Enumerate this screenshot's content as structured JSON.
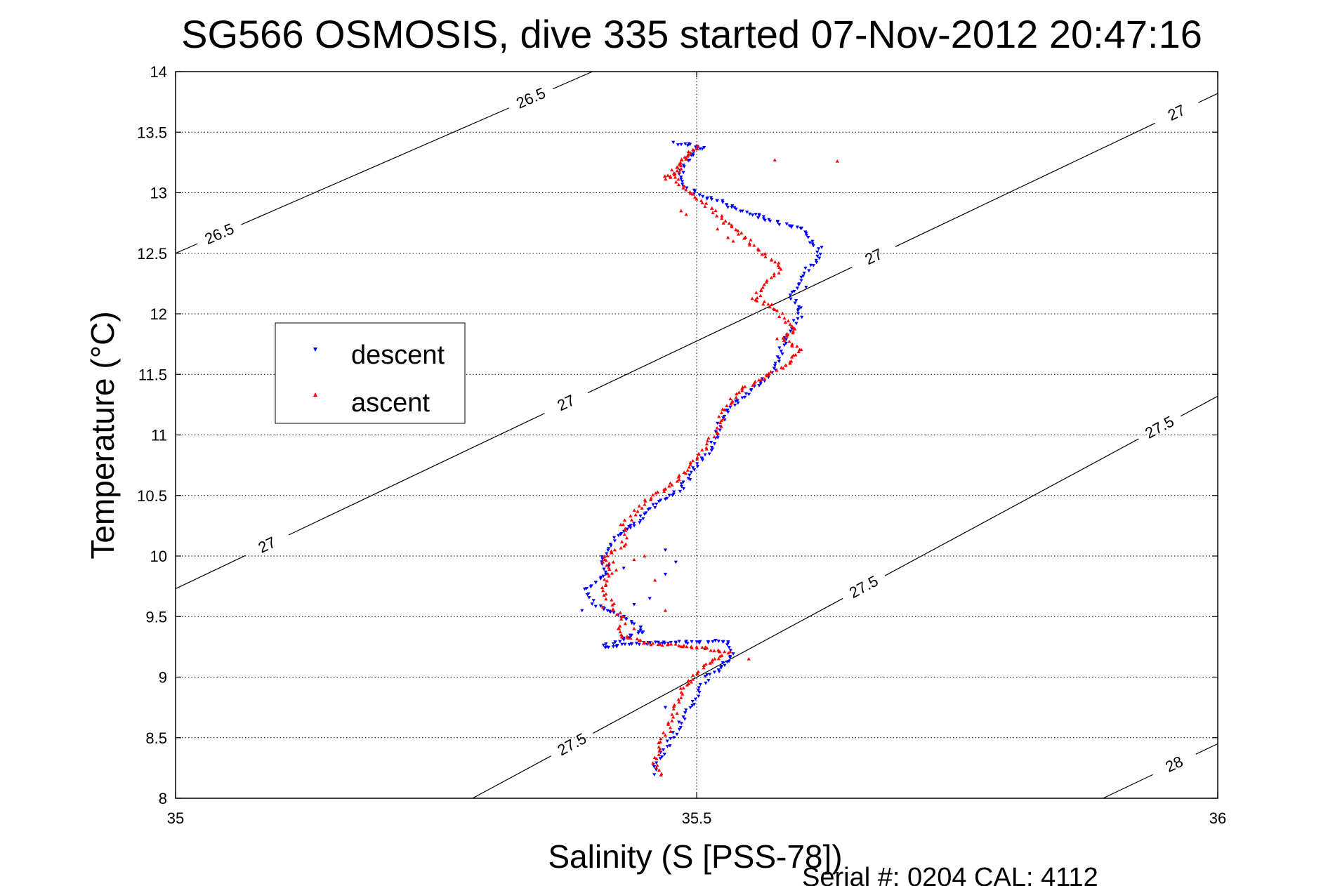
{
  "chart_data": {
    "type": "scatter",
    "title": "SG566 OSMOSIS, dive 335 started 07-Nov-2012 20:47:16",
    "xlabel": "Salinity (S [PSS-78])",
    "ylabel": "Temperature (°C)",
    "xlim": [
      35,
      36
    ],
    "ylim": [
      8,
      14
    ],
    "xticks": [
      35,
      35.5,
      36
    ],
    "xtick_labels": [
      "35",
      "35.5",
      "36"
    ],
    "yticks": [
      8,
      8.5,
      9,
      9.5,
      10,
      10.5,
      11,
      11.5,
      12,
      12.5,
      13,
      13.5,
      14
    ],
    "ytick_labels": [
      "8",
      "8.5",
      "9",
      "9.5",
      "10",
      "10.5",
      "11",
      "11.5",
      "12",
      "12.5",
      "13",
      "13.5",
      "14"
    ],
    "grid": true,
    "grid_style": "dotted",
    "legend_position": "left",
    "footer": "Serial #: 0204  CAL: 4112",
    "density_contours": [
      {
        "label": "26.5",
        "points": [
          [
            35,
            12.5
          ],
          [
            35.4,
            14
          ]
        ],
        "label_positions": [
          [
            35.045,
            12.6
          ],
          [
            35.345,
            13.7
          ]
        ]
      },
      {
        "label": "27",
        "points": [
          [
            35,
            9.73
          ],
          [
            36,
            13.82
          ]
        ],
        "label_positions": [
          [
            35.09,
            10.05
          ],
          [
            35.37,
            11.35
          ],
          [
            35.665,
            12.56
          ],
          [
            35.96,
            13.67
          ]
        ]
      },
      {
        "label": "27.5",
        "points": [
          [
            35.285,
            8
          ],
          [
            36,
            11.32
          ]
        ],
        "label_positions": [
          [
            35.38,
            8.45
          ],
          [
            35.66,
            9.75
          ],
          [
            35.945,
            11.05
          ]
        ]
      },
      {
        "label": "28",
        "points": [
          [
            35.89,
            8
          ],
          [
            36,
            8.45
          ]
        ],
        "label_positions": [
          [
            35.96,
            8.25
          ]
        ]
      }
    ],
    "series": [
      {
        "name": "descent",
        "color": "#0000ff",
        "marker": "triangle-down",
        "path": [
          [
            35.48,
            13.41
          ],
          [
            35.49,
            13.4
          ],
          [
            35.505,
            13.38
          ],
          [
            35.492,
            13.3
          ],
          [
            35.483,
            13.15
          ],
          [
            35.49,
            13.05
          ],
          [
            35.5,
            13.0
          ],
          [
            35.53,
            12.9
          ],
          [
            35.56,
            12.8
          ],
          [
            35.6,
            12.7
          ],
          [
            35.62,
            12.5
          ],
          [
            35.6,
            12.3
          ],
          [
            35.59,
            12.15
          ],
          [
            35.6,
            12.0
          ],
          [
            35.59,
            11.85
          ],
          [
            35.58,
            11.7
          ],
          [
            35.58,
            11.6
          ],
          [
            35.57,
            11.5
          ],
          [
            35.55,
            11.35
          ],
          [
            35.53,
            11.2
          ],
          [
            35.52,
            11.05
          ],
          [
            35.515,
            10.9
          ],
          [
            35.5,
            10.75
          ],
          [
            35.485,
            10.55
          ],
          [
            35.465,
            10.45
          ],
          [
            35.445,
            10.3
          ],
          [
            35.42,
            10.15
          ],
          [
            35.41,
            10.0
          ],
          [
            35.415,
            9.85
          ],
          [
            35.395,
            9.72
          ],
          [
            35.4,
            9.6
          ],
          [
            35.43,
            9.5
          ],
          [
            35.45,
            9.38
          ],
          [
            35.41,
            9.25
          ],
          [
            35.45,
            9.28
          ],
          [
            35.5,
            9.29
          ],
          [
            35.53,
            9.3
          ],
          [
            35.535,
            9.2
          ],
          [
            35.53,
            9.12
          ],
          [
            35.51,
            9.0
          ],
          [
            35.5,
            8.85
          ],
          [
            35.49,
            8.7
          ],
          [
            35.48,
            8.55
          ],
          [
            35.47,
            8.4
          ],
          [
            35.46,
            8.28
          ],
          [
            35.46,
            8.18
          ]
        ],
        "scatter": [
          [
            35.51,
            12.95
          ],
          [
            35.53,
            12.88
          ],
          [
            35.56,
            12.82
          ],
          [
            35.62,
            12.55
          ],
          [
            35.605,
            12.22
          ],
          [
            35.6,
            12.05
          ],
          [
            35.44,
            10.25
          ],
          [
            35.47,
            10.05
          ],
          [
            35.43,
            9.9
          ],
          [
            35.39,
            9.55
          ],
          [
            35.47,
            9.85
          ],
          [
            35.455,
            9.65
          ],
          [
            35.44,
            9.6
          ],
          [
            35.48,
            9.95
          ],
          [
            35.525,
            9.12
          ],
          [
            35.47,
            8.75
          ]
        ]
      },
      {
        "name": "ascent",
        "color": "#ff0000",
        "marker": "triangle-up",
        "path": [
          [
            35.47,
            13.12
          ],
          [
            35.485,
            13.2
          ],
          [
            35.49,
            13.3
          ],
          [
            35.5,
            13.38
          ],
          [
            35.485,
            13.25
          ],
          [
            35.475,
            13.15
          ],
          [
            35.58,
            12.38
          ],
          [
            35.565,
            12.22
          ],
          [
            35.555,
            12.12
          ],
          [
            35.575,
            12.05
          ],
          [
            35.585,
            11.95
          ],
          [
            35.595,
            11.85
          ],
          [
            35.58,
            11.8
          ],
          [
            35.6,
            11.7
          ],
          [
            35.59,
            11.6
          ],
          [
            35.565,
            11.48
          ],
          [
            35.54,
            11.35
          ],
          [
            35.525,
            11.2
          ],
          [
            35.52,
            11.05
          ],
          [
            35.51,
            10.9
          ],
          [
            35.495,
            10.75
          ],
          [
            35.475,
            10.58
          ],
          [
            35.45,
            10.45
          ],
          [
            35.43,
            10.25
          ],
          [
            35.43,
            10.1
          ],
          [
            35.41,
            9.98
          ],
          [
            35.42,
            9.88
          ],
          [
            35.41,
            9.75
          ],
          [
            35.415,
            9.65
          ],
          [
            35.43,
            9.45
          ],
          [
            35.425,
            9.35
          ],
          [
            35.45,
            9.28
          ],
          [
            35.5,
            9.25
          ],
          [
            35.53,
            9.2
          ],
          [
            35.51,
            9.12
          ],
          [
            35.5,
            9.02
          ],
          [
            35.485,
            8.9
          ],
          [
            35.48,
            8.75
          ],
          [
            35.475,
            8.6
          ],
          [
            35.465,
            8.45
          ],
          [
            35.46,
            8.3
          ],
          [
            35.465,
            8.16
          ]
        ],
        "scatter": [
          [
            35.485,
            12.85
          ],
          [
            35.49,
            12.82
          ],
          [
            35.52,
            12.7
          ],
          [
            35.535,
            12.6
          ],
          [
            35.53,
            12.63
          ],
          [
            35.575,
            13.27
          ],
          [
            35.635,
            13.26
          ],
          [
            35.44,
            9.97
          ],
          [
            35.41,
            9.95
          ],
          [
            35.42,
            9.95
          ],
          [
            35.45,
            10.0
          ],
          [
            35.46,
            9.8
          ],
          [
            35.43,
            9.5
          ],
          [
            35.41,
            9.58
          ],
          [
            35.47,
            9.55
          ],
          [
            35.44,
            9.4
          ],
          [
            35.5,
            9.25
          ],
          [
            35.55,
            9.15
          ]
        ]
      }
    ]
  }
}
